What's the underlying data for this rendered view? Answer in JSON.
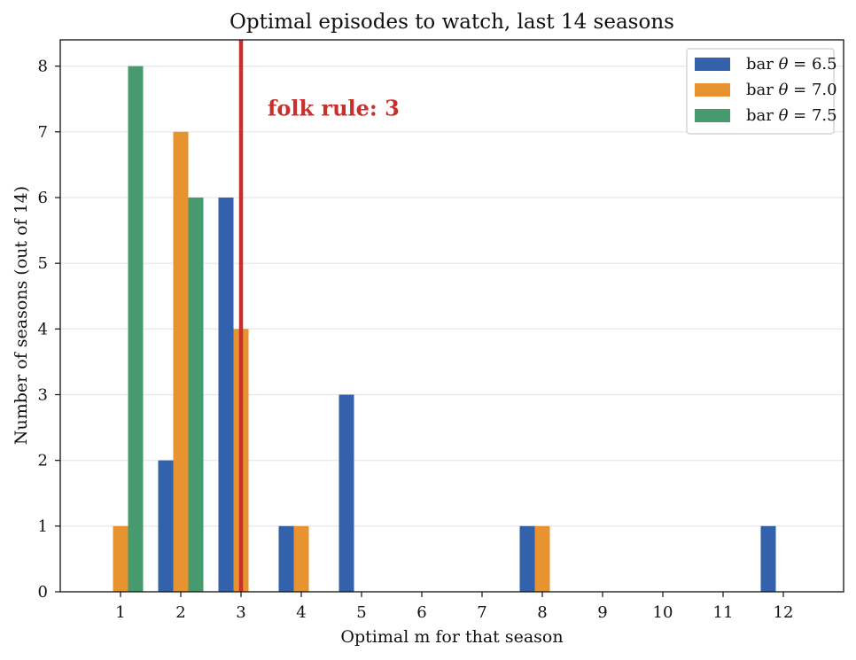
{
  "chart_data": {
    "type": "bar",
    "title": "Optimal episodes to watch, last 14 seasons",
    "xlabel": "Optimal m for that season",
    "ylabel": "Number of seasons (out of 14)",
    "categories": [
      "1",
      "2",
      "3",
      "4",
      "5",
      "6",
      "7",
      "8",
      "9",
      "10",
      "11",
      "12"
    ],
    "series": [
      {
        "name": "bar θ = 6.5",
        "symbol": "θ",
        "prefix": "bar ",
        "value_text": " = 6.5",
        "color": "#3361ab",
        "values": [
          0,
          2,
          6,
          1,
          3,
          0,
          0,
          1,
          0,
          0,
          0,
          1
        ]
      },
      {
        "name": "bar θ = 7.0",
        "symbol": "θ",
        "prefix": "bar ",
        "value_text": " = 7.0",
        "color": "#e69330",
        "values": [
          1,
          7,
          4,
          1,
          0,
          0,
          0,
          1,
          0,
          0,
          0,
          0
        ]
      },
      {
        "name": "bar θ = 7.5",
        "symbol": "θ",
        "prefix": "bar ",
        "value_text": " = 7.5",
        "color": "#469a6e",
        "values": [
          8,
          6,
          0,
          0,
          0,
          0,
          0,
          0,
          0,
          0,
          0,
          0
        ]
      }
    ],
    "ylim": [
      0,
      8.4
    ],
    "yticks": [
      0,
      1,
      2,
      3,
      4,
      5,
      6,
      7,
      8
    ],
    "grid": "horizontal",
    "legend_position": "top-right",
    "reference_line": {
      "x": 3,
      "color": "#c9302c",
      "label": "folk rule: 3"
    }
  }
}
